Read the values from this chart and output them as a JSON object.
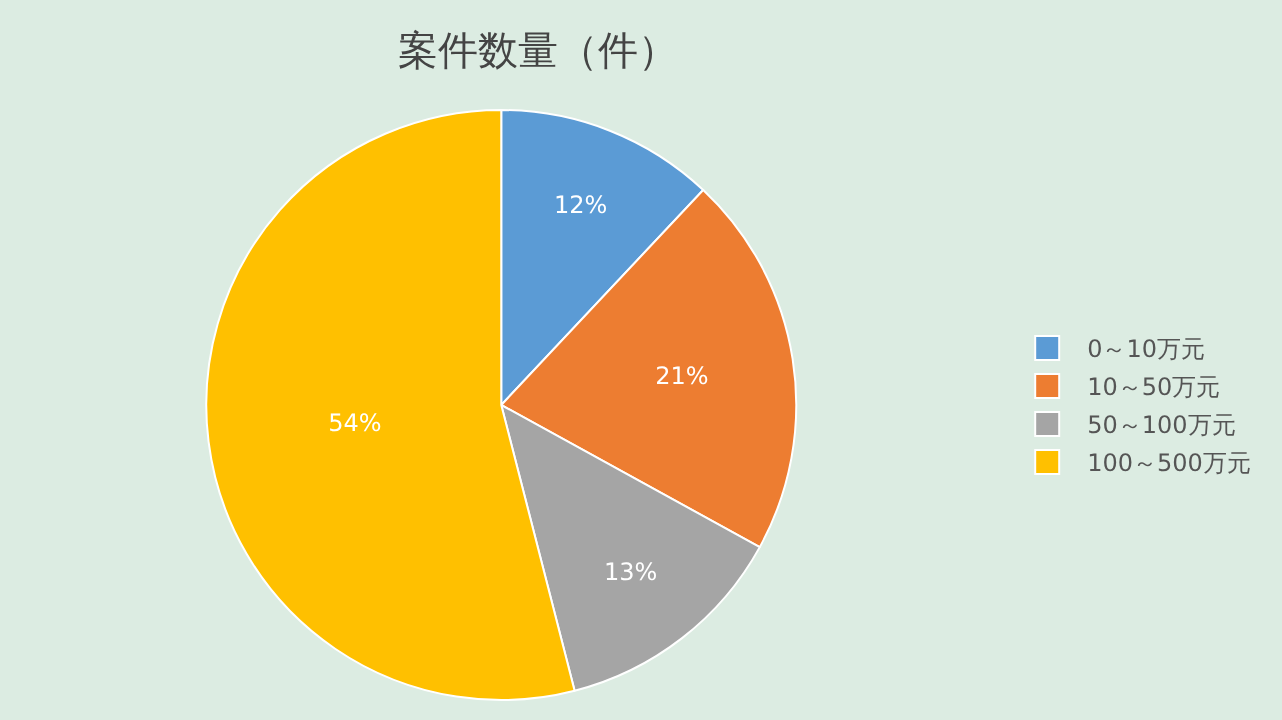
{
  "chart_data": {
    "type": "pie",
    "title": "案件数量（件）",
    "categories": [
      "0～10万元",
      "10～50万元",
      "50～100万元",
      "100～500万元"
    ],
    "values": [
      12,
      21,
      13,
      54
    ],
    "colors": [
      "#5b9bd5",
      "#ed7d31",
      "#a5a5a5",
      "#ffc000"
    ],
    "value_labels": [
      "12%",
      "21%",
      "13%",
      "54%"
    ],
    "legend": "right"
  }
}
